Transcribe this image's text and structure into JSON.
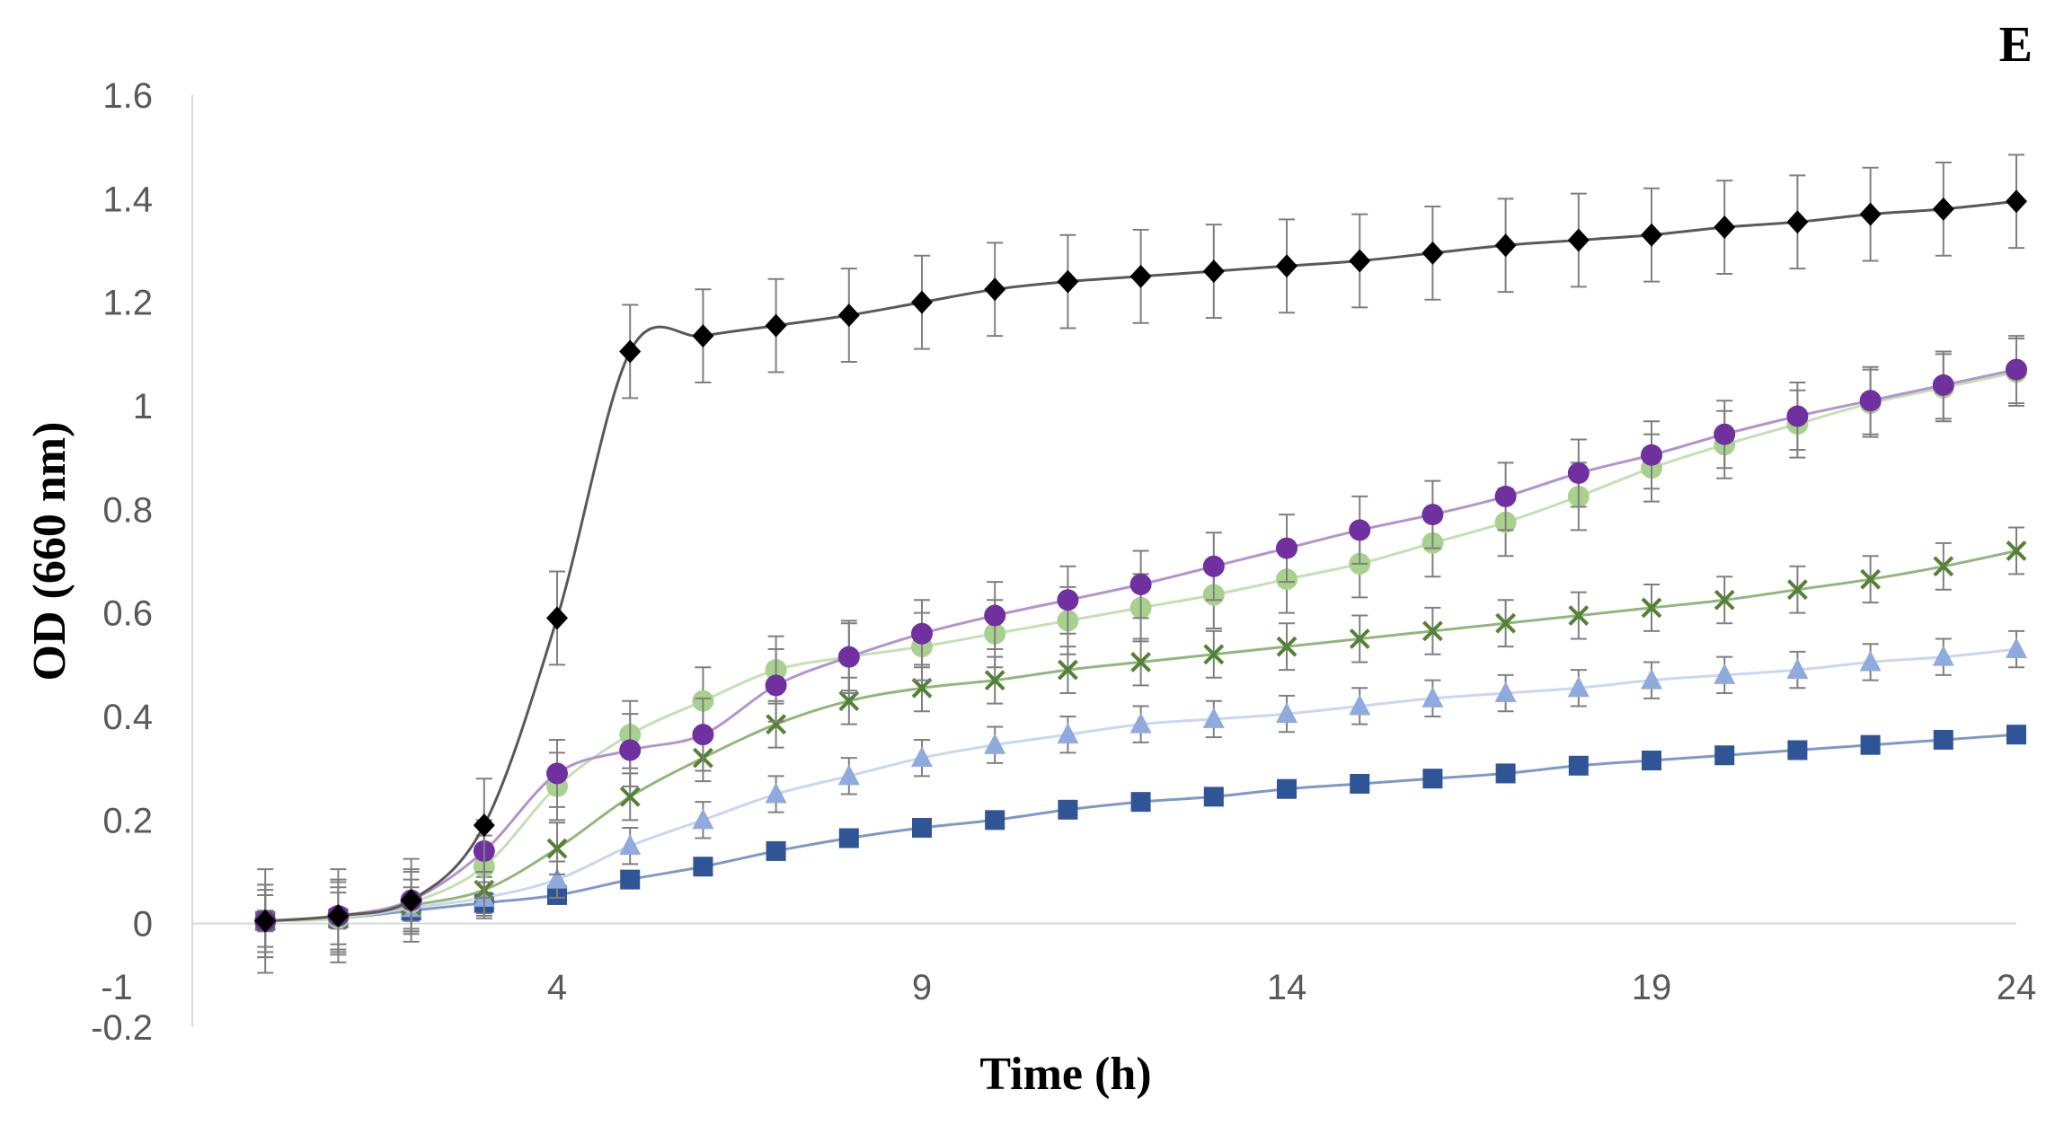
{
  "panel_label": "E",
  "chart_data": {
    "type": "line",
    "title": "",
    "xlabel": "Time (h)",
    "ylabel": "OD (660 nm)",
    "xlim": [
      -1,
      24
    ],
    "ylim": [
      -0.2,
      1.6
    ],
    "x_ticks": [
      -1,
      4,
      9,
      14,
      19,
      24
    ],
    "y_ticks": [
      -0.2,
      0,
      0.2,
      0.4,
      0.6,
      0.8,
      1,
      1.2,
      1.4,
      1.6
    ],
    "x_tick_labels": [
      "-1",
      "4",
      "9",
      "14",
      "19",
      "24"
    ],
    "y_tick_labels": [
      "-0.2",
      "0",
      "0.2",
      "0.4",
      "0.6",
      "0.8",
      "1",
      "1.2",
      "1.4",
      "1.6"
    ],
    "x": [
      0,
      1,
      2,
      3,
      4,
      5,
      6,
      7,
      8,
      9,
      10,
      11,
      12,
      13,
      14,
      15,
      16,
      17,
      18,
      19,
      20,
      21,
      22,
      23,
      24
    ],
    "series": [
      {
        "name": "black-diamond",
        "marker": "diamond",
        "marker_color": "#000000",
        "line_color": "#595959",
        "values": [
          0.005,
          0.015,
          0.045,
          0.19,
          0.59,
          1.105,
          1.135,
          1.155,
          1.175,
          1.2,
          1.225,
          1.24,
          1.25,
          1.26,
          1.27,
          1.28,
          1.295,
          1.31,
          1.32,
          1.33,
          1.345,
          1.355,
          1.37,
          1.38,
          1.395
        ],
        "errors": [
          0.1,
          0.09,
          0.08,
          0.09,
          0.09,
          0.09,
          0.09,
          0.09,
          0.09,
          0.09,
          0.09,
          0.09,
          0.09,
          0.09,
          0.09,
          0.09,
          0.09,
          0.09,
          0.09,
          0.09,
          0.09,
          0.09,
          0.09,
          0.09,
          0.09
        ]
      },
      {
        "name": "purple-circle",
        "marker": "circle",
        "marker_color": "#7030A0",
        "line_color": "#B294CF",
        "values": [
          0.005,
          0.015,
          0.045,
          0.14,
          0.29,
          0.335,
          0.365,
          0.46,
          0.515,
          0.56,
          0.595,
          0.625,
          0.655,
          0.69,
          0.725,
          0.76,
          0.79,
          0.825,
          0.87,
          0.905,
          0.945,
          0.98,
          1.01,
          1.04,
          1.07
        ],
        "errors": [
          0.07,
          0.07,
          0.06,
          0.06,
          0.065,
          0.07,
          0.07,
          0.07,
          0.07,
          0.065,
          0.065,
          0.065,
          0.065,
          0.065,
          0.065,
          0.065,
          0.065,
          0.065,
          0.065,
          0.065,
          0.065,
          0.065,
          0.065,
          0.065,
          0.065
        ]
      },
      {
        "name": "light-green-circle",
        "marker": "circle",
        "marker_color": "#A9D18E",
        "line_color": "#C5E0B4",
        "values": [
          0.005,
          0.01,
          0.04,
          0.11,
          0.265,
          0.365,
          0.43,
          0.49,
          0.515,
          0.535,
          0.56,
          0.585,
          0.61,
          0.635,
          0.665,
          0.695,
          0.735,
          0.775,
          0.825,
          0.88,
          0.925,
          0.965,
          1.005,
          1.035,
          1.065
        ],
        "errors": [
          0.07,
          0.07,
          0.06,
          0.06,
          0.065,
          0.065,
          0.065,
          0.065,
          0.065,
          0.065,
          0.065,
          0.065,
          0.065,
          0.065,
          0.065,
          0.065,
          0.065,
          0.065,
          0.065,
          0.065,
          0.065,
          0.065,
          0.065,
          0.065,
          0.065
        ]
      },
      {
        "name": "green-x",
        "marker": "x",
        "marker_color": "#548235",
        "line_color": "#93B67C",
        "values": [
          0.005,
          0.01,
          0.035,
          0.065,
          0.145,
          0.245,
          0.32,
          0.385,
          0.43,
          0.455,
          0.47,
          0.49,
          0.505,
          0.52,
          0.535,
          0.55,
          0.565,
          0.58,
          0.595,
          0.61,
          0.625,
          0.645,
          0.665,
          0.69,
          0.72
        ],
        "errors": [
          0.06,
          0.06,
          0.05,
          0.05,
          0.05,
          0.045,
          0.045,
          0.045,
          0.045,
          0.045,
          0.045,
          0.045,
          0.045,
          0.045,
          0.045,
          0.045,
          0.045,
          0.045,
          0.045,
          0.045,
          0.045,
          0.045,
          0.045,
          0.045,
          0.045
        ]
      },
      {
        "name": "light-blue-triangle",
        "marker": "triangle",
        "marker_color": "#8FAADC",
        "line_color": "#C9D7EF",
        "values": [
          0.005,
          0.01,
          0.03,
          0.05,
          0.085,
          0.15,
          0.2,
          0.25,
          0.285,
          0.32,
          0.345,
          0.365,
          0.385,
          0.395,
          0.405,
          0.42,
          0.435,
          0.445,
          0.455,
          0.47,
          0.48,
          0.49,
          0.505,
          0.515,
          0.53
        ],
        "errors": [
          0.05,
          0.05,
          0.04,
          0.04,
          0.035,
          0.035,
          0.035,
          0.035,
          0.035,
          0.035,
          0.035,
          0.035,
          0.035,
          0.035,
          0.035,
          0.035,
          0.035,
          0.035,
          0.035,
          0.035,
          0.035,
          0.035,
          0.035,
          0.035,
          0.035
        ]
      },
      {
        "name": "blue-square",
        "marker": "square",
        "marker_color": "#2F5597",
        "line_color": "#7F98C8",
        "values": [
          0.005,
          0.01,
          0.025,
          0.04,
          0.055,
          0.085,
          0.11,
          0.14,
          0.165,
          0.185,
          0.2,
          0.22,
          0.235,
          0.245,
          0.26,
          0.27,
          0.28,
          0.29,
          0.305,
          0.315,
          0.325,
          0.335,
          0.345,
          0.355,
          0.365
        ],
        "errors": [
          0.02,
          0.02,
          0.02,
          0.02,
          0.015,
          0.015,
          0.015,
          0.015,
          0.015,
          0.015,
          0.015,
          0.015,
          0.015,
          0.015,
          0.015,
          0.015,
          0.015,
          0.015,
          0.015,
          0.015,
          0.015,
          0.015,
          0.015,
          0.015,
          0.015
        ]
      }
    ]
  }
}
